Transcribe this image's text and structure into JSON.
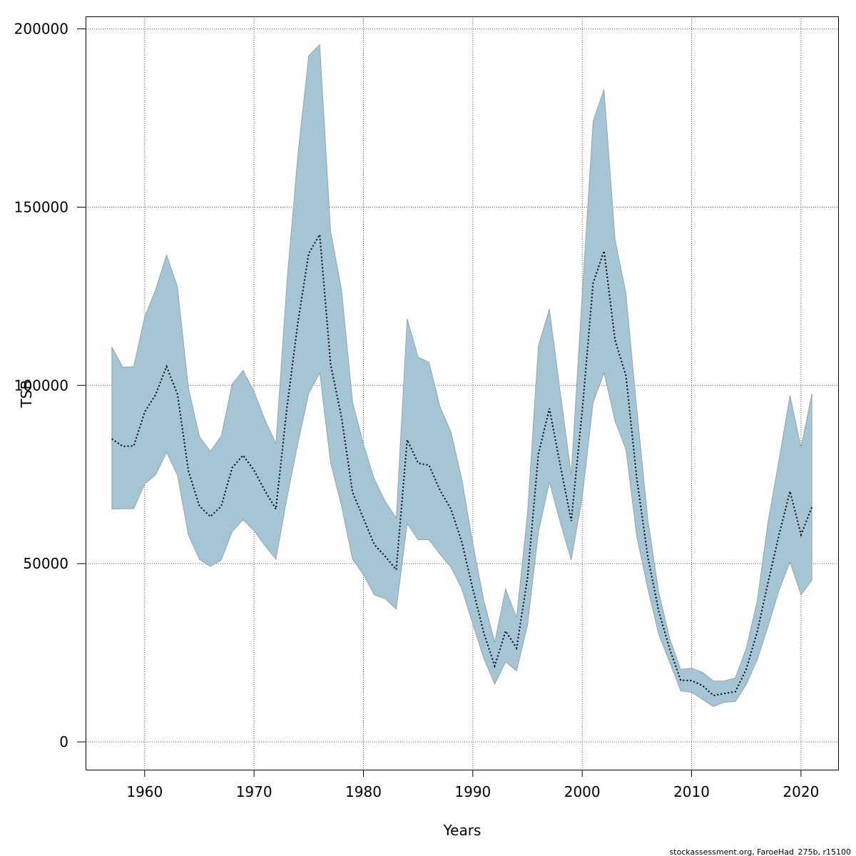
{
  "chart_data": {
    "type": "area",
    "xlabel": "Years",
    "ylabel": "TSB",
    "xlim": [
      1954.6,
      2023.4
    ],
    "ylim": [
      -7800,
      203500
    ],
    "xticks": [
      1960,
      1970,
      1980,
      1990,
      2000,
      2010,
      2020
    ],
    "yticks": [
      0,
      50000,
      100000,
      150000,
      200000
    ],
    "ytick_labels": [
      "0",
      "50000",
      "100000",
      "150000",
      "200000"
    ],
    "grid": true,
    "colors": {
      "band": "#a5c4d4",
      "band_edge": "#8a9aa3",
      "line": "#000000",
      "grid": "#555555"
    },
    "x": [
      1957,
      1958,
      1959,
      1960,
      1961,
      1962,
      1963,
      1964,
      1965,
      1966,
      1967,
      1968,
      1969,
      1970,
      1971,
      1972,
      1973,
      1974,
      1975,
      1976,
      1977,
      1978,
      1979,
      1980,
      1981,
      1982,
      1983,
      1984,
      1985,
      1986,
      1987,
      1988,
      1989,
      1990,
      1991,
      1992,
      1993,
      1994,
      1995,
      1996,
      1997,
      1998,
      1999,
      2000,
      2001,
      2002,
      2003,
      2004,
      2005,
      2006,
      2007,
      2008,
      2009,
      2010,
      2011,
      2012,
      2013,
      2014,
      2015,
      2016,
      2017,
      2018,
      2019,
      2020,
      2021
    ],
    "series": [
      {
        "values": [
          85000,
          82900,
          83000,
          92500,
          97400,
          105300,
          97500,
          76000,
          66200,
          63200,
          66100,
          76900,
          80400,
          76200,
          70400,
          65300,
          93700,
          117500,
          137000,
          142300,
          105900,
          91000,
          70000,
          62700,
          55300,
          52000,
          48300,
          84700,
          78200,
          77600,
          70600,
          65300,
          56000,
          42900,
          30600,
          21300,
          31100,
          26300,
          46000,
          80800,
          93500,
          77500,
          62000,
          92800,
          128700,
          137700,
          112700,
          102700,
          73700,
          51800,
          36600,
          26000,
          17300,
          17200,
          15800,
          13000,
          13600,
          14100,
          20400,
          30900,
          44900,
          58200,
          70300,
          58100,
          65900
        ]
      },
      {
        "name": "upper",
        "values": [
          110800,
          105100,
          105300,
          119200,
          126800,
          136600,
          127700,
          99400,
          85700,
          81500,
          85800,
          100400,
          104200,
          98300,
          90300,
          83700,
          128900,
          164600,
          192500,
          195600,
          143200,
          126900,
          95400,
          83500,
          73700,
          67400,
          62800,
          118700,
          107900,
          106500,
          94000,
          87000,
          73600,
          55700,
          39800,
          28000,
          42900,
          34900,
          64200,
          111200,
          121400,
          98000,
          75000,
          125700,
          174200,
          183000,
          141000,
          125800,
          93200,
          62300,
          42000,
          29000,
          20400,
          20700,
          19500,
          17100,
          17100,
          18000,
          26300,
          39500,
          62000,
          79300,
          97200,
          82600,
          97700
        ]
      },
      {
        "name": "lower",
        "values": [
          65300,
          65400,
          65400,
          72300,
          74900,
          81200,
          74800,
          58000,
          51200,
          49200,
          51000,
          59000,
          62300,
          59200,
          55000,
          51200,
          68300,
          83600,
          97700,
          103500,
          78200,
          66100,
          51200,
          46900,
          41200,
          40100,
          37200,
          61200,
          56700,
          56700,
          52600,
          49000,
          42800,
          33100,
          23400,
          16200,
          22400,
          19900,
          32800,
          58800,
          72900,
          61400,
          51000,
          68500,
          95200,
          103500,
          90000,
          82000,
          57400,
          42900,
          30100,
          22300,
          14300,
          13900,
          11900,
          9900,
          11100,
          11300,
          16100,
          23000,
          32500,
          42600,
          50500,
          41200,
          45300
        ]
      }
    ]
  },
  "footer": {
    "source": "stockassessment.org, FaroeHad_275b, r15100"
  }
}
